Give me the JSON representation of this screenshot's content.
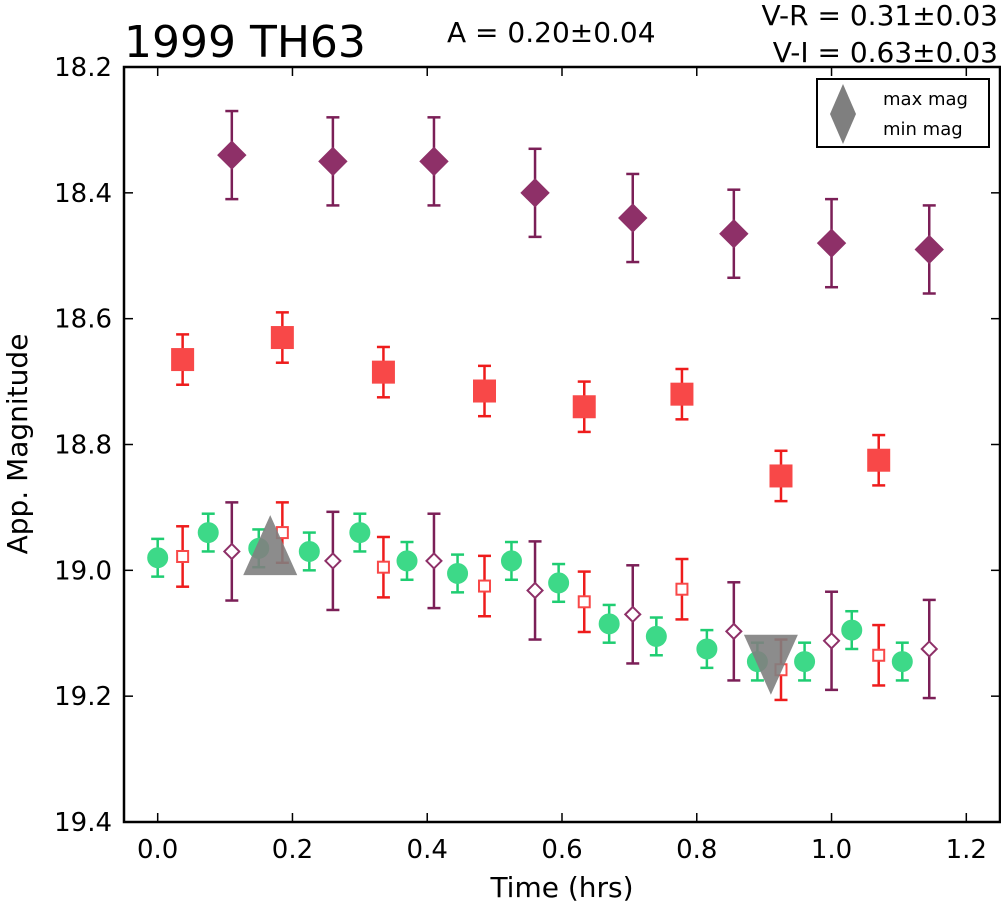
{
  "chart_data": {
    "type": "scatter",
    "title": "1999 TH63",
    "annotations": {
      "amplitude": "A  = 0.20±0.04",
      "vr": "V-R = 0.31±0.03",
      "vi": "V-I  = 0.63±0.03"
    },
    "xlabel": "Time (hrs)",
    "ylabel": "App. Magnitude",
    "xlim": [
      -0.05,
      1.25
    ],
    "ylim": [
      19.4,
      18.2
    ],
    "y_inverted": true,
    "x_ticks": [
      "0.0",
      "0.2",
      "0.4",
      "0.6",
      "0.8",
      "1.0",
      "1.2"
    ],
    "y_ticks": [
      "18.2",
      "18.4",
      "18.6",
      "18.8",
      "19.0",
      "19.2",
      "19.4"
    ],
    "legend": {
      "placement": "top-right",
      "entries": [
        {
          "label": "max mag",
          "marker": "triangle-up",
          "color": "#7f7f7f"
        },
        {
          "label": "min mag",
          "marker": "triangle-down",
          "color": "#7f7f7f"
        }
      ]
    },
    "series": [
      {
        "marker": "diamond",
        "filled": true,
        "color": "#7b1f57",
        "face": "#8e3068",
        "points": [
          {
            "x": 0.11,
            "y": 18.34,
            "err": 0.07
          },
          {
            "x": 0.26,
            "y": 18.35,
            "err": 0.07
          },
          {
            "x": 0.41,
            "y": 18.35,
            "err": 0.07
          },
          {
            "x": 0.56,
            "y": 18.4,
            "err": 0.07
          },
          {
            "x": 0.705,
            "y": 18.44,
            "err": 0.07
          },
          {
            "x": 0.855,
            "y": 18.465,
            "err": 0.07
          },
          {
            "x": 1.0,
            "y": 18.48,
            "err": 0.07
          },
          {
            "x": 1.145,
            "y": 18.49,
            "err": 0.07
          }
        ]
      },
      {
        "marker": "square",
        "filled": true,
        "color": "#ee1c1c",
        "face": "#f84848",
        "points": [
          {
            "x": 0.037,
            "y": 18.665,
            "err": 0.04
          },
          {
            "x": 0.185,
            "y": 18.63,
            "err": 0.04
          },
          {
            "x": 0.335,
            "y": 18.685,
            "err": 0.04
          },
          {
            "x": 0.485,
            "y": 18.715,
            "err": 0.04
          },
          {
            "x": 0.633,
            "y": 18.74,
            "err": 0.04
          },
          {
            "x": 0.778,
            "y": 18.72,
            "err": 0.04
          },
          {
            "x": 0.925,
            "y": 18.85,
            "err": 0.04
          },
          {
            "x": 1.07,
            "y": 18.825,
            "err": 0.04
          }
        ]
      },
      {
        "marker": "circle",
        "filled": true,
        "color": "#1fcd72",
        "face": "#3dd988",
        "points": [
          {
            "x": 0.0,
            "y": 18.98,
            "err": 0.03
          },
          {
            "x": 0.075,
            "y": 18.94,
            "err": 0.03
          },
          {
            "x": 0.15,
            "y": 18.965,
            "err": 0.03
          },
          {
            "x": 0.225,
            "y": 18.97,
            "err": 0.03
          },
          {
            "x": 0.3,
            "y": 18.94,
            "err": 0.03
          },
          {
            "x": 0.37,
            "y": 18.985,
            "err": 0.03
          },
          {
            "x": 0.445,
            "y": 19.005,
            "err": 0.03
          },
          {
            "x": 0.525,
            "y": 18.985,
            "err": 0.03
          },
          {
            "x": 0.595,
            "y": 19.02,
            "err": 0.03
          },
          {
            "x": 0.67,
            "y": 19.085,
            "err": 0.03
          },
          {
            "x": 0.74,
            "y": 19.105,
            "err": 0.03
          },
          {
            "x": 0.815,
            "y": 19.125,
            "err": 0.03
          },
          {
            "x": 0.89,
            "y": 19.145,
            "err": 0.03
          },
          {
            "x": 0.96,
            "y": 19.145,
            "err": 0.03
          },
          {
            "x": 1.03,
            "y": 19.095,
            "err": 0.03
          },
          {
            "x": 1.105,
            "y": 19.145,
            "err": 0.03
          }
        ]
      },
      {
        "marker": "square",
        "filled": false,
        "color": "#ee1c1c",
        "face": "#f84848",
        "points": [
          {
            "x": 0.037,
            "y": 18.978,
            "err": 0.048
          },
          {
            "x": 0.185,
            "y": 18.94,
            "err": 0.048
          },
          {
            "x": 0.335,
            "y": 18.995,
            "err": 0.048
          },
          {
            "x": 0.485,
            "y": 19.025,
            "err": 0.048
          },
          {
            "x": 0.633,
            "y": 19.05,
            "err": 0.048
          },
          {
            "x": 0.778,
            "y": 19.03,
            "err": 0.048
          },
          {
            "x": 0.925,
            "y": 19.158,
            "err": 0.048
          },
          {
            "x": 1.07,
            "y": 19.135,
            "err": 0.048
          }
        ]
      },
      {
        "marker": "diamond",
        "filled": false,
        "color": "#7b1f57",
        "face": "#8e3068",
        "points": [
          {
            "x": 0.11,
            "y": 18.97,
            "err": 0.078
          },
          {
            "x": 0.26,
            "y": 18.985,
            "err": 0.078
          },
          {
            "x": 0.41,
            "y": 18.985,
            "err": 0.075
          },
          {
            "x": 0.56,
            "y": 19.032,
            "err": 0.078
          },
          {
            "x": 0.705,
            "y": 19.07,
            "err": 0.078
          },
          {
            "x": 0.855,
            "y": 19.097,
            "err": 0.078
          },
          {
            "x": 1.0,
            "y": 19.112,
            "err": 0.078
          },
          {
            "x": 1.145,
            "y": 19.125,
            "err": 0.078
          }
        ]
      }
    ],
    "max_min_markers": [
      {
        "label": "max mag",
        "marker": "triangle-up",
        "x": 0.167,
        "y": 18.96
      },
      {
        "label": "min mag",
        "marker": "triangle-down",
        "x": 0.91,
        "y": 19.15
      }
    ]
  }
}
